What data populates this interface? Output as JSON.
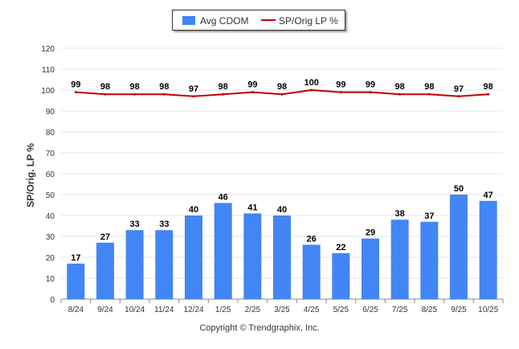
{
  "chart_data": {
    "type": "bar",
    "categories": [
      "8/24",
      "9/24",
      "10/24",
      "11/24",
      "12/24",
      "1/25",
      "2/25",
      "3/25",
      "4/25",
      "5/25",
      "6/25",
      "7/25",
      "8/25",
      "9/25",
      "10/25"
    ],
    "series": [
      {
        "name": "Avg CDOM",
        "type": "bar",
        "color": "#4285f4",
        "values": [
          17,
          27,
          33,
          33,
          40,
          46,
          41,
          40,
          26,
          22,
          29,
          38,
          37,
          50,
          47
        ]
      },
      {
        "name": "SP/Orig LP %",
        "type": "line",
        "color": "#c00000",
        "values": [
          99,
          98,
          98,
          98,
          97,
          98,
          99,
          98,
          100,
          99,
          99,
          98,
          98,
          97,
          98
        ]
      }
    ],
    "title": "",
    "xlabel": "",
    "ylabel": "SP/Orig. LP %",
    "ylim": [
      0,
      120
    ],
    "yticks": [
      0,
      10,
      20,
      30,
      40,
      50,
      60,
      70,
      80,
      90,
      100,
      110,
      120
    ],
    "grid": true,
    "legend": "top-center"
  },
  "legend": {
    "bar_label": "Avg CDOM",
    "line_label": "SP/Orig LP %"
  },
  "footer": {
    "copyright": "Copyright © Trendgraphix, Inc."
  }
}
